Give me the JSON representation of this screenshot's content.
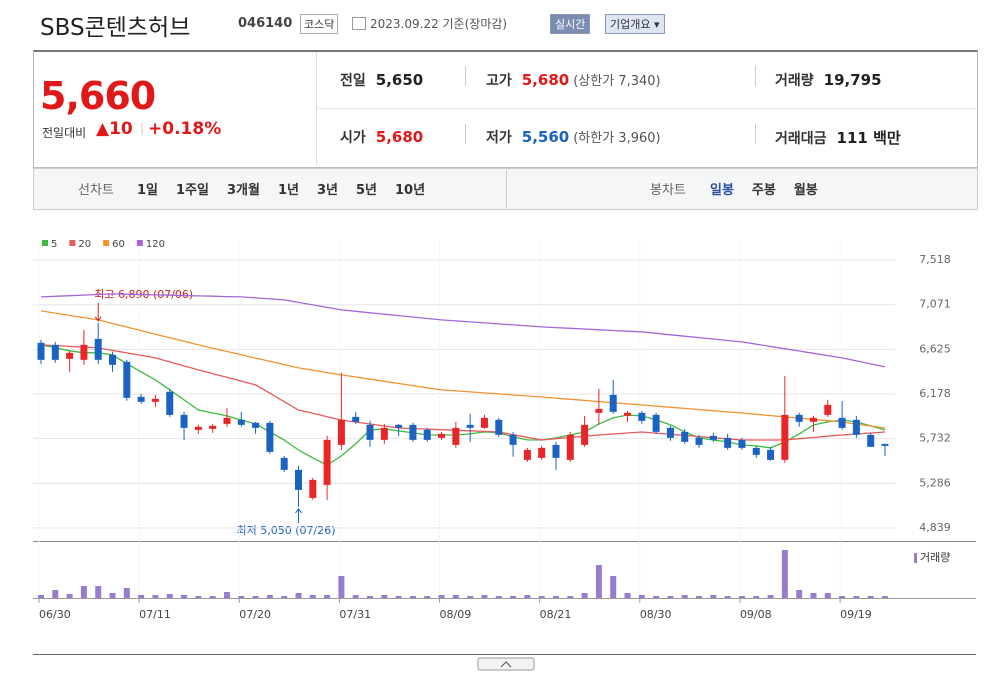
{
  "header": {
    "title": "SBS콘텐츠허브",
    "code": "046140",
    "market": "코스닥",
    "date": "2023.09.22 기준(장마감)",
    "realtime": "실시간",
    "company": "기업개요"
  },
  "summary": {
    "price": "5,660",
    "change_label": "전일대비",
    "change": "10",
    "change_pct": "+0.18%",
    "rows": [
      [
        [
          "전일",
          "5,650",
          ""
        ],
        [
          "고가",
          "5,680",
          "(상한가 7,340)"
        ],
        [
          "거래량",
          "19,795",
          ""
        ]
      ],
      [
        [
          "시가",
          "5,680",
          ""
        ],
        [
          "저가",
          "5,560",
          "(하한가 3,960)"
        ],
        [
          "거래대금",
          "111 백만",
          ""
        ]
      ]
    ]
  },
  "tabs": {
    "line_label": "선차트",
    "line": [
      "1일",
      "1주일",
      "3개월",
      "1년",
      "3년",
      "5년",
      "10년"
    ],
    "candle_label": "봉차트",
    "candle": [
      "일봉",
      "주봉",
      "월봉"
    ]
  },
  "chart_data": {
    "type": "candlestick",
    "up_color": "#e8262a",
    "down_color": "#1a62c4",
    "categories": [
      "06/30",
      null,
      null,
      null,
      null,
      null,
      null,
      "07/11",
      null,
      null,
      null,
      null,
      null,
      null,
      "07/20",
      null,
      null,
      null,
      null,
      null,
      null,
      "07/31",
      null,
      null,
      null,
      null,
      null,
      null,
      "08/09",
      null,
      null,
      null,
      null,
      null,
      null,
      "08/21",
      null,
      null,
      null,
      null,
      null,
      null,
      "08/30",
      null,
      null,
      null,
      null,
      null,
      null,
      "09/08",
      null,
      null,
      null,
      null,
      null,
      null,
      "09/19",
      null,
      null,
      null
    ],
    "open": [
      6690,
      6670,
      6530,
      6520,
      6730,
      6570,
      6500,
      6150,
      6100,
      6200,
      5970,
      5820,
      5830,
      5880,
      5920,
      5890,
      5890,
      5540,
      5420,
      5140,
      5270,
      5670,
      5950,
      5870,
      5720,
      5870,
      5870,
      5820,
      5740,
      5670,
      5870,
      5840,
      5920,
      5770,
      5520,
      5540,
      5670,
      5520,
      5670,
      5990,
      6170,
      5960,
      5990,
      5970,
      5840,
      5800,
      5740,
      5760,
      5740,
      5720,
      5640,
      5620,
      5520,
      5970,
      5900,
      5970,
      5940,
      5920,
      5770,
      5680
    ],
    "high": [
      6720,
      6700,
      6610,
      6820,
      6890,
      6600,
      6520,
      6180,
      6170,
      6230,
      6000,
      5870,
      5880,
      6040,
      6000,
      5900,
      5910,
      5560,
      5460,
      5340,
      5760,
      6390,
      6000,
      5910,
      5880,
      5880,
      5890,
      5840,
      5800,
      5900,
      5980,
      5970,
      5940,
      5800,
      5640,
      5660,
      5700,
      5800,
      5960,
      6230,
      6320,
      6010,
      6010,
      5990,
      5860,
      5830,
      5770,
      5790,
      5780,
      5740,
      5660,
      5650,
      6360,
      5990,
      5960,
      6120,
      6110,
      5960,
      5790,
      5680
    ],
    "low": [
      6480,
      6490,
      6400,
      6470,
      6480,
      6400,
      6110,
      6080,
      6050,
      5950,
      5720,
      5780,
      5790,
      5850,
      5850,
      5780,
      5580,
      5400,
      5050,
      5120,
      5120,
      5620,
      5880,
      5650,
      5680,
      5760,
      5700,
      5700,
      5720,
      5640,
      5700,
      5830,
      5750,
      5550,
      5500,
      5520,
      5420,
      5500,
      5650,
      5870,
      5980,
      5900,
      5880,
      5780,
      5710,
      5680,
      5640,
      5700,
      5620,
      5620,
      5540,
      5510,
      5490,
      5850,
      5800,
      5950,
      5820,
      5740,
      5650,
      5560
    ],
    "close": [
      6520,
      6520,
      6590,
      6670,
      6520,
      6470,
      6140,
      6100,
      6130,
      5970,
      5840,
      5850,
      5860,
      5940,
      5870,
      5840,
      5600,
      5420,
      5220,
      5320,
      5720,
      5920,
      5900,
      5720,
      5840,
      5840,
      5720,
      5720,
      5780,
      5840,
      5840,
      5940,
      5770,
      5670,
      5620,
      5640,
      5540,
      5770,
      5870,
      6030,
      6000,
      5990,
      5910,
      5800,
      5740,
      5700,
      5670,
      5720,
      5640,
      5640,
      5570,
      5520,
      5970,
      5900,
      5940,
      6070,
      5840,
      5770,
      5650,
      5660
    ],
    "series": [
      {
        "name": "5",
        "color": "#3dba3d",
        "values": [
          6669,
          6640,
          6610,
          6590,
          6590,
          6569,
          6480,
          6400,
          6319,
          6220,
          6120,
          6019,
          5990,
          5960,
          5919,
          5880,
          5800,
          5719,
          5619,
          5540,
          5469,
          5560,
          5680,
          5819,
          5830,
          5810,
          5790,
          5770,
          5769,
          5770,
          5780,
          5800,
          5790,
          5750,
          5720,
          5719,
          5740,
          5770,
          5799,
          5880,
          5940,
          5969,
          5960,
          5920,
          5870,
          5800,
          5740,
          5719,
          5700,
          5669,
          5660,
          5640,
          5700,
          5780,
          5869,
          5900,
          5919,
          5900,
          5860,
          5819
        ]
      },
      {
        "name": "20",
        "color": "#e85a5a",
        "values": [
          6669,
          6662,
          6654,
          6647,
          6639,
          6614,
          6589,
          6564,
          6539,
          6499,
          6459,
          6419,
          6382,
          6344,
          6307,
          6269,
          6186,
          6102,
          6019,
          5986,
          5952,
          5919,
          5899,
          5879,
          5859,
          5839,
          5833,
          5828,
          5822,
          5816,
          5811,
          5805,
          5799,
          5772,
          5746,
          5719,
          5732,
          5744,
          5757,
          5769,
          5779,
          5789,
          5799,
          5788,
          5776,
          5765,
          5753,
          5742,
          5730,
          5719,
          5719,
          5719,
          5719,
          5732,
          5744,
          5757,
          5769,
          5779,
          5789,
          5799
        ]
      },
      {
        "name": "60",
        "color": "#f29230",
        "values": [
          7009,
          6987,
          6964,
          6942,
          6919,
          6883,
          6848,
          6812,
          6776,
          6741,
          6705,
          6669,
          6636,
          6603,
          6570,
          6537,
          6505,
          6472,
          6439,
          6416,
          6392,
          6369,
          6348,
          6326,
          6305,
          6283,
          6262,
          6240,
          6219,
          6209,
          6199,
          6189,
          6179,
          6169,
          6159,
          6149,
          6138,
          6126,
          6115,
          6103,
          6092,
          6080,
          6069,
          6058,
          6046,
          6035,
          6023,
          6012,
          6000,
          5989,
          5976,
          5963,
          5950,
          5937,
          5925,
          5912,
          5899,
          5879,
          5859,
          5839
        ]
      },
      {
        "name": "120",
        "color": "#a565dc",
        "values": [
          7149,
          7155,
          7161,
          7167,
          7173,
          7179,
          7176,
          7172,
          7169,
          7166,
          7162,
          7159,
          7156,
          7152,
          7149,
          7139,
          7129,
          7119,
          7094,
          7069,
          7044,
          7019,
          7005,
          6990,
          6976,
          6962,
          6948,
          6933,
          6919,
          6909,
          6899,
          6889,
          6879,
          6869,
          6859,
          6849,
          6842,
          6835,
          6828,
          6820,
          6813,
          6806,
          6799,
          6785,
          6770,
          6756,
          6742,
          6728,
          6713,
          6699,
          6676,
          6653,
          6630,
          6608,
          6585,
          6562,
          6539,
          6509,
          6479,
          6449
        ]
      }
    ],
    "ylim": [
      4839,
      7518
    ],
    "yticks": [
      {
        "value": 4839,
        "label": "4,839"
      },
      {
        "value": 5286,
        "label": "5,286"
      },
      {
        "value": 5732,
        "label": "5,732"
      },
      {
        "value": 6178,
        "label": "6,178"
      },
      {
        "value": 6625,
        "label": "6,625"
      },
      {
        "value": 7071,
        "label": "7,071"
      },
      {
        "value": 7518,
        "label": "7,518"
      }
    ],
    "grid": true,
    "max_label": "최고 6,890 (07/06)",
    "min_label": "최저 5,050 (07/26)",
    "volume": {
      "name": "거래량",
      "color": "#9a7ccc",
      "ylim": [
        0,
        500000
      ],
      "values": [
        30000,
        80000,
        40000,
        120000,
        120000,
        50000,
        100000,
        30000,
        30000,
        40000,
        30000,
        20000,
        20000,
        60000,
        20000,
        20000,
        30000,
        20000,
        50000,
        30000,
        30000,
        220000,
        30000,
        20000,
        30000,
        20000,
        20000,
        20000,
        30000,
        30000,
        20000,
        30000,
        20000,
        20000,
        30000,
        20000,
        20000,
        20000,
        50000,
        330000,
        220000,
        50000,
        30000,
        20000,
        20000,
        30000,
        20000,
        30000,
        20000,
        20000,
        20000,
        30000,
        480000,
        80000,
        50000,
        50000,
        20000,
        20000,
        20000,
        19795
      ]
    }
  }
}
